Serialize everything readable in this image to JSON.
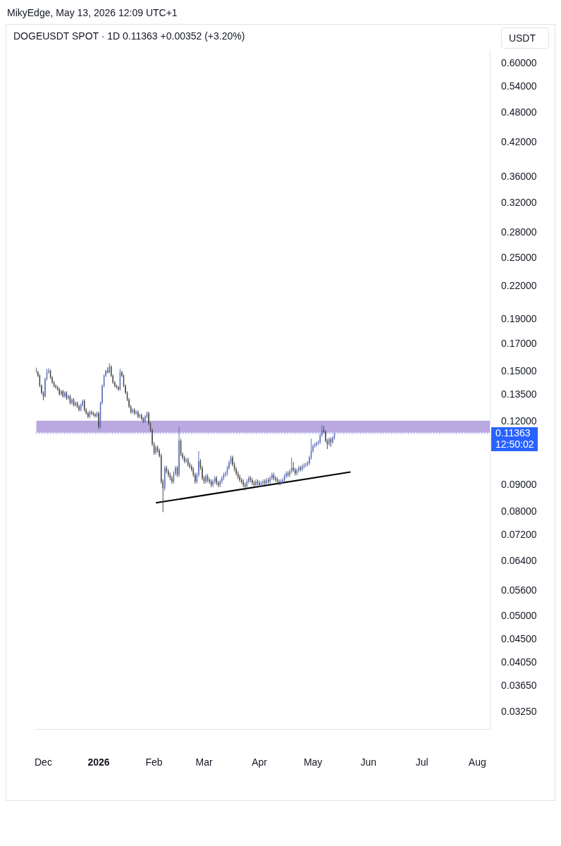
{
  "chart_data": {
    "type": "candlestick",
    "subtitle": "MikyEdge, May 13, 2026 12:09 UTC+1",
    "title": "DOGEUSDT SPOT · 1D  0.11363  +0.00352 (+3.20%)",
    "log": "y",
    "grid": false,
    "legend": false,
    "xlim": [
      "2025-11-27",
      "2026-08-08"
    ],
    "xticks": [
      {
        "value": "2025-12",
        "label": "Dec"
      },
      {
        "value": "2026",
        "label": "2026"
      },
      {
        "value": "2026-02",
        "label": "Feb"
      },
      {
        "value": "2026-03",
        "label": "Mar"
      },
      {
        "value": "2026-04",
        "label": "Apr"
      },
      {
        "value": "2026-05",
        "label": "May"
      },
      {
        "value": "2026-06",
        "label": "Jun"
      },
      {
        "value": "2026-07",
        "label": "Jul"
      },
      {
        "value": "2026-08",
        "label": "Aug"
      }
    ],
    "ylim": [
      0.0301,
      0.637
    ],
    "yticks": [
      {
        "value": 0.6,
        "label": "0.60000"
      },
      {
        "value": 0.54,
        "label": "0.54000"
      },
      {
        "value": 0.48,
        "label": "0.48000"
      },
      {
        "value": 0.42,
        "label": "0.42000"
      },
      {
        "value": 0.36,
        "label": "0.36000"
      },
      {
        "value": 0.32,
        "label": "0.32000"
      },
      {
        "value": 0.28,
        "label": "0.28000"
      },
      {
        "value": 0.25,
        "label": "0.25000"
      },
      {
        "value": 0.22,
        "label": "0.22000"
      },
      {
        "value": 0.19,
        "label": "0.19000"
      },
      {
        "value": 0.17,
        "label": "0.17000"
      },
      {
        "value": 0.15,
        "label": "0.15000"
      },
      {
        "value": 0.135,
        "label": "0.13500"
      },
      {
        "value": 0.12,
        "label": "0.12000"
      },
      {
        "value": 0.09,
        "label": "0.09000"
      },
      {
        "value": 0.08,
        "label": "0.08000"
      },
      {
        "value": 0.072,
        "label": "0.07200"
      },
      {
        "value": 0.064,
        "label": "0.06400"
      },
      {
        "value": 0.056,
        "label": "0.05600"
      },
      {
        "value": 0.05,
        "label": "0.05000"
      },
      {
        "value": 0.045,
        "label": "0.04500"
      },
      {
        "value": 0.0405,
        "label": "0.04050"
      },
      {
        "value": 0.0365,
        "label": "0.03650"
      },
      {
        "value": 0.0325,
        "label": "0.03250"
      }
    ],
    "ref_lines": [
      {
        "axis": "y",
        "value": 0.11363,
        "label": "0.11363",
        "color": "#2962ff",
        "line_style": "dotted"
      }
    ],
    "bands": [
      {
        "axis": "y",
        "from": 0.1141,
        "to": 0.1204,
        "color": "#b9a9e0"
      }
    ],
    "annotations": [
      "12:50:02",
      "USDT"
    ],
    "series": [
      {
        "type": "line",
        "color": "#000000",
        "x": [
          "2026-02-02",
          "2026-05-22"
        ],
        "values": [
          0.0832,
          0.0956
        ]
      },
      {
        "colors": [
          "#4a4a4a",
          "#4a4a4a",
          "#4a4a4a",
          "#4a4a4a",
          "#4a4a4a",
          "#5e6db8",
          "#5e6db8",
          "#5e6db8",
          "#4a4a4a",
          "#4a4a4a",
          "#4a4a4a",
          "#4a4a4a",
          "#4a4a4a",
          "#4a4a4a",
          "#5e6db8",
          "#4a4a4a",
          "#5e6db8",
          "#4a4a4a",
          "#5e6db8",
          "#4a4a4a",
          "#5e6db8",
          "#4a4a4a",
          "#5e6db8",
          "#4a4a4a",
          "#4a4a4a",
          "#5e6db8",
          "#5e6db8",
          "#4a4a4a",
          "#4a4a4a",
          "#4a4a4a",
          "#5e6db8",
          "#4a4a4a",
          "#4a4a4a",
          "#4a4a4a",
          "#5e6db8",
          "#4a4a4a",
          "#5e6db8",
          "#5e6db8",
          "#5e6db8",
          "#5e6db8",
          "#4a4a4a",
          "#5e6db8",
          "#4a4a4a",
          "#4a4a4a",
          "#4a4a4a",
          "#4a4a4a",
          "#4a4a4a",
          "#5e6db8",
          "#4a4a4a",
          "#4a4a4a",
          "#4a4a4a",
          "#4a4a4a",
          "#4a4a4a",
          "#4a4a4a",
          "#5e6db8",
          "#4a4a4a",
          "#5e6db8",
          "#4a4a4a",
          "#5e6db8",
          "#4a4a4a",
          "#4a4a4a",
          "#5e6db8",
          "#5e6db8",
          "#4a4a4a",
          "#4a4a4a",
          "#4a4a4a",
          "#4a4a4a",
          "#5e6db8",
          "#4a4a4a",
          "#4a4a4a",
          "#4a4a4a",
          "#4a4a4a",
          "#5e6db8",
          "#4a4a4a",
          "#4a4a4a",
          "#4a4a4a",
          "#4a4a4a",
          "#5e6db8",
          "#5e6db8",
          "#4a4a4a",
          "#5e6db8",
          "#4a4a4a",
          "#4a4a4a",
          "#4a4a4a",
          "#5e6db8",
          "#4a4a4a",
          "#4a4a4a",
          "#4a4a4a",
          "#4a4a4a",
          "#4a4a4a",
          "#5e6db8",
          "#5e6db8",
          "#4a4a4a",
          "#4a4a4a",
          "#4a4a4a",
          "#5e6db8",
          "#4a4a4a",
          "#4a4a4a",
          "#4a4a4a",
          "#5e6db8",
          "#5e6db8",
          "#4a4a4a",
          "#4a4a4a",
          "#5e6db8",
          "#5e6db8",
          "#5e6db8",
          "#5e6db8",
          "#5e6db8",
          "#5e6db8",
          "#5e6db8",
          "#4a4a4a",
          "#4a4a4a",
          "#4a4a4a",
          "#4a4a4a",
          "#4a4a4a",
          "#4a4a4a",
          "#4a4a4a",
          "#4a4a4a",
          "#5e6db8",
          "#5e6db8",
          "#4a4a4a",
          "#4a4a4a",
          "#4a4a4a",
          "#5e6db8",
          "#4a4a4a",
          "#4a4a4a",
          "#5e6db8",
          "#5e6db8",
          "#4a4a4a",
          "#5e6db8",
          "#4a4a4a",
          "#5e6db8",
          "#5e6db8",
          "#4a4a4a",
          "#4a4a4a",
          "#4a4a4a",
          "#4a4a4a",
          "#5e6db8",
          "#5e6db8",
          "#5e6db8",
          "#5e6db8",
          "#4a4a4a",
          "#5e6db8",
          "#5e6db8",
          "#4a4a4a",
          "#4a4a4a",
          "#5e6db8",
          "#5e6db8",
          "#4a4a4a",
          "#5e6db8",
          "#5e6db8",
          "#5e6db8",
          "#5e6db8",
          "#5e6db8",
          "#5e6db8",
          "#5e6db8",
          "#5e6db8",
          "#5e6db8",
          "#5e6db8",
          "#5e6db8",
          "#5e6db8",
          "#4a4a4a",
          "#4a4a4a",
          "#4a4a4a",
          "#5e6db8",
          "#4a4a4a",
          "#5e6db8",
          "#5e6db8"
        ],
        "x": [
          "2025-11-27",
          "2025-11-28",
          "2025-11-29",
          "2025-11-30",
          "2025-12-01",
          "2025-12-02",
          "2025-12-03",
          "2025-12-04",
          "2025-12-05",
          "2025-12-06",
          "2025-12-07",
          "2025-12-08",
          "2025-12-09",
          "2025-12-10",
          "2025-12-11",
          "2025-12-12",
          "2025-12-13",
          "2025-12-14",
          "2025-12-15",
          "2025-12-16",
          "2025-12-17",
          "2025-12-18",
          "2025-12-19",
          "2025-12-20",
          "2025-12-21",
          "2025-12-22",
          "2025-12-23",
          "2025-12-24",
          "2025-12-25",
          "2025-12-26",
          "2025-12-27",
          "2025-12-28",
          "2025-12-29",
          "2025-12-30",
          "2025-12-31",
          "2026-01-01",
          "2026-01-02",
          "2026-01-03",
          "2026-01-04",
          "2026-01-05",
          "2026-01-06",
          "2026-01-07",
          "2026-01-08",
          "2026-01-09",
          "2026-01-10",
          "2026-01-11",
          "2026-01-12",
          "2026-01-13",
          "2026-01-14",
          "2026-01-15",
          "2026-01-16",
          "2026-01-17",
          "2026-01-18",
          "2026-01-19",
          "2026-01-20",
          "2026-01-21",
          "2026-01-22",
          "2026-01-23",
          "2026-01-24",
          "2026-01-25",
          "2026-01-26",
          "2026-01-27",
          "2026-01-28",
          "2026-01-29",
          "2026-01-30",
          "2026-01-31",
          "2026-02-01",
          "2026-02-02",
          "2026-02-03",
          "2026-02-04",
          "2026-02-05",
          "2026-02-06",
          "2026-02-07",
          "2026-02-08",
          "2026-02-09",
          "2026-02-10",
          "2026-02-11",
          "2026-02-12",
          "2026-02-13",
          "2026-02-14",
          "2026-02-15",
          "2026-02-16",
          "2026-02-17",
          "2026-02-18",
          "2026-02-19",
          "2026-02-20",
          "2026-02-21",
          "2026-02-22",
          "2026-02-23",
          "2026-02-24",
          "2026-02-25",
          "2026-02-26",
          "2026-02-27",
          "2026-02-28",
          "2026-03-01",
          "2026-03-02",
          "2026-03-03",
          "2026-03-04",
          "2026-03-05",
          "2026-03-06",
          "2026-03-07",
          "2026-03-08",
          "2026-03-09",
          "2026-03-10",
          "2026-03-11",
          "2026-03-12",
          "2026-03-13",
          "2026-03-14",
          "2026-03-15",
          "2026-03-16",
          "2026-03-17",
          "2026-03-18",
          "2026-03-19",
          "2026-03-20",
          "2026-03-21",
          "2026-03-22",
          "2026-03-23",
          "2026-03-24",
          "2026-03-25",
          "2026-03-26",
          "2026-03-27",
          "2026-03-28",
          "2026-03-29",
          "2026-03-30",
          "2026-03-31",
          "2026-04-01",
          "2026-04-02",
          "2026-04-03",
          "2026-04-04",
          "2026-04-05",
          "2026-04-06",
          "2026-04-07",
          "2026-04-08",
          "2026-04-09",
          "2026-04-10",
          "2026-04-11",
          "2026-04-12",
          "2026-04-13",
          "2026-04-14",
          "2026-04-15",
          "2026-04-16",
          "2026-04-17",
          "2026-04-18",
          "2026-04-19",
          "2026-04-20",
          "2026-04-21",
          "2026-04-22",
          "2026-04-23",
          "2026-04-24",
          "2026-04-25",
          "2026-04-26",
          "2026-04-27",
          "2026-04-28",
          "2026-04-29",
          "2026-04-30",
          "2026-05-01",
          "2026-05-02",
          "2026-05-03",
          "2026-05-04",
          "2026-05-05",
          "2026-05-06",
          "2026-05-07",
          "2026-05-08",
          "2026-05-09",
          "2026-05-10",
          "2026-05-11",
          "2026-05-12",
          "2026-05-13"
        ],
        "ohlc": [
          [
            0.152,
            0.1529,
            0.1488,
            0.1497
          ],
          [
            0.1497,
            0.1506,
            0.1465,
            0.1474
          ],
          [
            0.1474,
            0.1483,
            0.1399,
            0.1408
          ],
          [
            0.1408,
            0.1417,
            0.1356,
            0.1365
          ],
          [
            0.1365,
            0.1374,
            0.132,
            0.1344
          ],
          [
            0.1344,
            0.1461,
            0.1335,
            0.1452
          ],
          [
            0.1452,
            0.152,
            0.1443,
            0.1497
          ],
          [
            0.1497,
            0.1525,
            0.1488,
            0.1506
          ],
          [
            0.1506,
            0.1515,
            0.1452,
            0.1461
          ],
          [
            0.1461,
            0.147,
            0.1421,
            0.143
          ],
          [
            0.143,
            0.1439,
            0.1399,
            0.1408
          ],
          [
            0.1408,
            0.1417,
            0.139,
            0.1399
          ],
          [
            0.1399,
            0.1408,
            0.1377,
            0.1386
          ],
          [
            0.1386,
            0.1395,
            0.1348,
            0.1357
          ],
          [
            0.1357,
            0.1383,
            0.1348,
            0.1374
          ],
          [
            0.1374,
            0.1383,
            0.1335,
            0.1344
          ],
          [
            0.1344,
            0.1374,
            0.1335,
            0.1365
          ],
          [
            0.1365,
            0.1374,
            0.1323,
            0.1332
          ],
          [
            0.1332,
            0.1353,
            0.1323,
            0.1344
          ],
          [
            0.1344,
            0.1353,
            0.1295,
            0.1304
          ],
          [
            0.1304,
            0.1333,
            0.1295,
            0.1324
          ],
          [
            0.1324,
            0.1333,
            0.1283,
            0.1292
          ],
          [
            0.1292,
            0.1313,
            0.1283,
            0.1304
          ],
          [
            0.1304,
            0.1313,
            0.1275,
            0.1284
          ],
          [
            0.1284,
            0.1293,
            0.1255,
            0.1264
          ],
          [
            0.1264,
            0.1301,
            0.1255,
            0.1292
          ],
          [
            0.1292,
            0.1325,
            0.1283,
            0.1316
          ],
          [
            0.1316,
            0.1325,
            0.1255,
            0.1264
          ],
          [
            0.1264,
            0.1273,
            0.1236,
            0.1245
          ],
          [
            0.1245,
            0.1254,
            0.1217,
            0.1226
          ],
          [
            0.1226,
            0.1261,
            0.1217,
            0.1252
          ],
          [
            0.1252,
            0.1261,
            0.1236,
            0.1245
          ],
          [
            0.1245,
            0.1254,
            0.1228,
            0.1237
          ],
          [
            0.1237,
            0.1246,
            0.1221,
            0.123
          ],
          [
            0.123,
            0.1254,
            0.1221,
            0.1245
          ],
          [
            0.1245,
            0.1254,
            0.116,
            0.1171
          ],
          [
            0.1171,
            0.1313,
            0.1162,
            0.1304
          ],
          [
            0.1304,
            0.1417,
            0.1295,
            0.1408
          ],
          [
            0.1408,
            0.1483,
            0.1399,
            0.1474
          ],
          [
            0.1474,
            0.1515,
            0.1465,
            0.1506
          ],
          [
            0.1506,
            0.153,
            0.1488,
            0.1497
          ],
          [
            0.1497,
            0.156,
            0.1488,
            0.1535
          ],
          [
            0.1535,
            0.1544,
            0.1465,
            0.1474
          ],
          [
            0.1474,
            0.1483,
            0.1421,
            0.143
          ],
          [
            0.143,
            0.1439,
            0.1399,
            0.1408
          ],
          [
            0.1408,
            0.1417,
            0.139,
            0.1399
          ],
          [
            0.1399,
            0.1408,
            0.1377,
            0.1386
          ],
          [
            0.1386,
            0.152,
            0.1377,
            0.1497
          ],
          [
            0.1497,
            0.1506,
            0.1465,
            0.1474
          ],
          [
            0.1474,
            0.1483,
            0.1399,
            0.1408
          ],
          [
            0.1408,
            0.1417,
            0.1356,
            0.1365
          ],
          [
            0.1365,
            0.1374,
            0.1315,
            0.1324
          ],
          [
            0.1324,
            0.1333,
            0.1275,
            0.1284
          ],
          [
            0.1284,
            0.1293,
            0.1243,
            0.1252
          ],
          [
            0.1252,
            0.1273,
            0.1243,
            0.1264
          ],
          [
            0.1264,
            0.1273,
            0.1236,
            0.1245
          ],
          [
            0.1245,
            0.1261,
            0.1236,
            0.1252
          ],
          [
            0.1252,
            0.1261,
            0.1217,
            0.1226
          ],
          [
            0.1226,
            0.1243,
            0.1217,
            0.1234
          ],
          [
            0.1234,
            0.1243,
            0.1206,
            0.1215
          ],
          [
            0.1215,
            0.1224,
            0.1191,
            0.12
          ],
          [
            0.12,
            0.1235,
            0.1191,
            0.1226
          ],
          [
            0.1226,
            0.1254,
            0.1217,
            0.1245
          ],
          [
            0.1245,
            0.1254,
            0.118,
            0.1189
          ],
          [
            0.1189,
            0.1198,
            0.1144,
            0.1153
          ],
          [
            0.1153,
            0.1162,
            0.1075,
            0.1084
          ],
          [
            0.1084,
            0.1093,
            0.1033,
            0.1042
          ],
          [
            0.1042,
            0.1077,
            0.1033,
            0.1068
          ],
          [
            0.1068,
            0.1077,
            0.1043,
            0.1052
          ],
          [
            0.1052,
            0.1061,
            0.102,
            0.1029
          ],
          [
            0.1029,
            0.1038,
            0.0907,
            0.0916
          ],
          [
            0.0916,
            0.0925,
            0.0798,
            0.0888
          ],
          [
            0.0888,
            0.0983,
            0.0879,
            0.0974
          ],
          [
            0.0974,
            0.0983,
            0.095,
            0.0959
          ],
          [
            0.0959,
            0.0968,
            0.0935,
            0.0944
          ],
          [
            0.0944,
            0.0953,
            0.0921,
            0.093
          ],
          [
            0.093,
            0.0939,
            0.0907,
            0.0916
          ],
          [
            0.0916,
            0.0959,
            0.0907,
            0.095
          ],
          [
            0.095,
            0.0983,
            0.0941,
            0.0974
          ],
          [
            0.0974,
            0.0983,
            0.0935,
            0.0944
          ],
          [
            0.0944,
            0.1171,
            0.0935,
            0.1101
          ],
          [
            0.1101,
            0.111,
            0.1026,
            0.1035
          ],
          [
            0.1035,
            0.1044,
            0.1011,
            0.102
          ],
          [
            0.102,
            0.1029,
            0.0995,
            0.1004
          ],
          [
            0.1004,
            0.1019,
            0.0995,
            0.101
          ],
          [
            0.101,
            0.1019,
            0.098,
            0.0989
          ],
          [
            0.0989,
            0.0998,
            0.0971,
            0.098
          ],
          [
            0.098,
            0.0989,
            0.0959,
            0.0968
          ],
          [
            0.0968,
            0.0977,
            0.0935,
            0.0944
          ],
          [
            0.0944,
            0.0953,
            0.0907,
            0.0916
          ],
          [
            0.0916,
            0.0953,
            0.0907,
            0.0944
          ],
          [
            0.0944,
            0.105,
            0.0935,
            0.1004
          ],
          [
            0.1004,
            0.1013,
            0.0965,
            0.0974
          ],
          [
            0.0974,
            0.0983,
            0.0921,
            0.093
          ],
          [
            0.093,
            0.0939,
            0.0907,
            0.0916
          ],
          [
            0.0916,
            0.0947,
            0.0907,
            0.0938
          ],
          [
            0.0938,
            0.0947,
            0.0913,
            0.0922
          ],
          [
            0.0922,
            0.0931,
            0.0907,
            0.0916
          ],
          [
            0.0916,
            0.0925,
            0.0893,
            0.0902
          ],
          [
            0.0902,
            0.0925,
            0.0893,
            0.0916
          ],
          [
            0.0916,
            0.0939,
            0.0907,
            0.093
          ],
          [
            0.093,
            0.0939,
            0.0901,
            0.091
          ],
          [
            0.091,
            0.0919,
            0.0893,
            0.0902
          ],
          [
            0.0902,
            0.0925,
            0.0893,
            0.0916
          ],
          [
            0.0916,
            0.0939,
            0.0907,
            0.093
          ],
          [
            0.093,
            0.0953,
            0.0921,
            0.0944
          ],
          [
            0.0944,
            0.0959,
            0.0935,
            0.095
          ],
          [
            0.095,
            0.0983,
            0.0941,
            0.0974
          ],
          [
            0.0974,
            0.1007,
            0.0965,
            0.0998
          ],
          [
            0.0998,
            0.1029,
            0.0989,
            0.102
          ],
          [
            0.102,
            0.1029,
            0.098,
            0.0989
          ],
          [
            0.0989,
            0.0998,
            0.0959,
            0.0968
          ],
          [
            0.0968,
            0.0977,
            0.0941,
            0.095
          ],
          [
            0.095,
            0.0959,
            0.0926,
            0.0935
          ],
          [
            0.0935,
            0.0944,
            0.0913,
            0.0922
          ],
          [
            0.0922,
            0.0931,
            0.0907,
            0.0916
          ],
          [
            0.0916,
            0.0925,
            0.0893,
            0.0902
          ],
          [
            0.0902,
            0.0911,
            0.088,
            0.0897
          ],
          [
            0.0897,
            0.0925,
            0.0888,
            0.0916
          ],
          [
            0.0916,
            0.0939,
            0.0907,
            0.093
          ],
          [
            0.093,
            0.0939,
            0.0913,
            0.0922
          ],
          [
            0.0922,
            0.0931,
            0.0901,
            0.091
          ],
          [
            0.091,
            0.0919,
            0.0893,
            0.0902
          ],
          [
            0.0902,
            0.0925,
            0.0893,
            0.0916
          ],
          [
            0.0916,
            0.0925,
            0.0901,
            0.091
          ],
          [
            0.091,
            0.0919,
            0.0893,
            0.0902
          ],
          [
            0.0902,
            0.0917,
            0.0893,
            0.0908
          ],
          [
            0.0908,
            0.0925,
            0.0899,
            0.0916
          ],
          [
            0.0916,
            0.0925,
            0.0901,
            0.091
          ],
          [
            0.091,
            0.0931,
            0.0901,
            0.0922
          ],
          [
            0.0922,
            0.0931,
            0.0907,
            0.0916
          ],
          [
            0.0916,
            0.0939,
            0.0907,
            0.093
          ],
          [
            0.093,
            0.0953,
            0.0921,
            0.0944
          ],
          [
            0.0944,
            0.0953,
            0.0921,
            0.093
          ],
          [
            0.093,
            0.0939,
            0.0915,
            0.0924
          ],
          [
            0.0924,
            0.0933,
            0.0907,
            0.0916
          ],
          [
            0.0916,
            0.0925,
            0.0901,
            0.091
          ],
          [
            0.091,
            0.0925,
            0.0901,
            0.0916
          ],
          [
            0.0916,
            0.0931,
            0.0907,
            0.0922
          ],
          [
            0.0922,
            0.0947,
            0.0913,
            0.0938
          ],
          [
            0.0938,
            0.0959,
            0.0929,
            0.095
          ],
          [
            0.095,
            0.0959,
            0.0935,
            0.0944
          ],
          [
            0.0944,
            0.0968,
            0.0935,
            0.0959
          ],
          [
            0.0959,
            0.102,
            0.095,
            0.0974
          ],
          [
            0.0974,
            0.1,
            0.0956,
            0.0965
          ],
          [
            0.0965,
            0.0974,
            0.0941,
            0.095
          ],
          [
            0.095,
            0.0971,
            0.0941,
            0.0962
          ],
          [
            0.0962,
            0.0983,
            0.0953,
            0.0974
          ],
          [
            0.0974,
            0.0983,
            0.0959,
            0.0968
          ],
          [
            0.0968,
            0.0989,
            0.0959,
            0.098
          ],
          [
            0.098,
            0.0995,
            0.0971,
            0.0986
          ],
          [
            0.0986,
            0.0998,
            0.0977,
            0.0989
          ],
          [
            0.0989,
            0.1004,
            0.098,
            0.0995
          ],
          [
            0.0995,
            0.1029,
            0.0986,
            0.102
          ],
          [
            0.102,
            0.111,
            0.1011,
            0.1052
          ],
          [
            0.1052,
            0.1083,
            0.1043,
            0.1074
          ],
          [
            0.1074,
            0.109,
            0.1065,
            0.1081
          ],
          [
            0.1081,
            0.1097,
            0.1072,
            0.1088
          ],
          [
            0.1088,
            0.1103,
            0.1079,
            0.1094
          ],
          [
            0.1094,
            0.1137,
            0.1085,
            0.1128
          ],
          [
            0.1128,
            0.118,
            0.1119,
            0.1153
          ],
          [
            0.1153,
            0.1175,
            0.1137,
            0.1146
          ],
          [
            0.1146,
            0.1155,
            0.1092,
            0.1101
          ],
          [
            0.1101,
            0.111,
            0.106,
            0.1084
          ],
          [
            0.1084,
            0.1117,
            0.1075,
            0.1108
          ],
          [
            0.1108,
            0.1117,
            0.107,
            0.1094
          ],
          [
            0.1094,
            0.1124,
            0.1085,
            0.1115
          ],
          [
            0.1115,
            0.114,
            0.1106,
            0.11363
          ]
        ]
      }
    ]
  }
}
